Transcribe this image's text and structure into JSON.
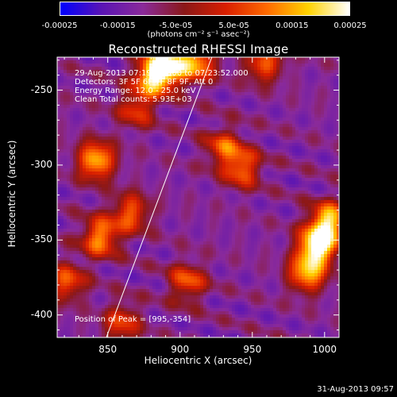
{
  "colorbar": {
    "ticks": [
      "-0.00025",
      "-0.00015",
      "-5.0e-05",
      "5.0e-05",
      "0.00015",
      "0.00025"
    ],
    "tick_values": [
      -0.00025,
      -0.00015,
      -5e-05,
      5e-05,
      0.00015,
      0.00025
    ],
    "units": "(photons cm⁻² s⁻¹ asec⁻²)",
    "colors": [
      "#0000ff",
      "#5a14b4",
      "#8a2a9a",
      "#8a1818",
      "#d81e00",
      "#ff6a00",
      "#ffd200",
      "#ffffff"
    ]
  },
  "info": {
    "line1": "29-Aug-2013 07:19:16.000 to 07:23:52.000",
    "line2": "Detectors: 3F 5F 6F 7F 8F 9F, Att 0",
    "line3": "Energy Range: 12.0 - 25.0 keV",
    "line4": "Clean     Total counts: 5.93E+03"
  },
  "peak_text": "Position of Peak = [995,-354]",
  "datestamp": "31-Aug-2013 09:57",
  "chart_data": {
    "type": "heatmap",
    "title": "Reconstructed RHESSI Image",
    "xlabel": "Heliocentric X (arcsec)",
    "ylabel": "Heliocentric Y (arcsec)",
    "xlim": [
      815,
      1010
    ],
    "ylim": [
      -415,
      -228
    ],
    "xticks": [
      850,
      900,
      950,
      1000
    ],
    "yticks": [
      -250,
      -300,
      -350,
      -400
    ],
    "xtick_labels": [
      "850",
      "900",
      "950",
      "1000"
    ],
    "ytick_labels": [
      "-250",
      "-300",
      "-350",
      "-400"
    ],
    "zlim": [
      -0.00025,
      0.00025
    ],
    "peak": [
      995,
      -354
    ],
    "limb_line": [
      [
        849,
        -415
      ],
      [
        922,
        -228
      ]
    ],
    "sources": [
      {
        "x": 882,
        "y": -240,
        "value": 0.00022
      },
      {
        "x": 893,
        "y": -233,
        "value": 0.00016
      },
      {
        "x": 912,
        "y": -232,
        "value": 0.00013
      },
      {
        "x": 842,
        "y": -297,
        "value": 0.00017
      },
      {
        "x": 845,
        "y": -348,
        "value": 0.00014
      },
      {
        "x": 866,
        "y": -332,
        "value": 9e-05
      },
      {
        "x": 822,
        "y": -378,
        "value": 8e-05
      },
      {
        "x": 943,
        "y": -302,
        "value": 0.0001
      },
      {
        "x": 930,
        "y": -288,
        "value": 7e-05
      },
      {
        "x": 905,
        "y": -378,
        "value": 8e-05
      },
      {
        "x": 995,
        "y": -354,
        "value": 0.00025
      },
      {
        "x": 1003,
        "y": -338,
        "value": 0.0002
      },
      {
        "x": 988,
        "y": -372,
        "value": 0.00015
      },
      {
        "x": 958,
        "y": -232,
        "value": 9e-05
      },
      {
        "x": 860,
        "y": -405,
        "value": 6e-05
      },
      {
        "x": 870,
        "y": -262,
        "value": 6e-05
      }
    ],
    "grid": false
  }
}
